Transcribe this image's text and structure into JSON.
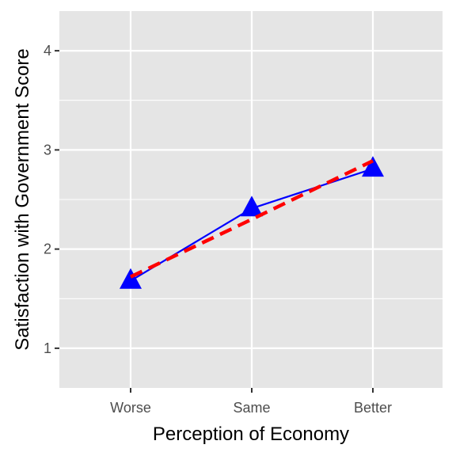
{
  "chart_data": {
    "type": "line",
    "title": "",
    "xlabel": "Perception of Economy",
    "ylabel": "Satisfaction with Government Score",
    "categories": [
      "Worse",
      "Same",
      "Better"
    ],
    "ylim": [
      0.6,
      4.4
    ],
    "yticks": [
      1,
      2,
      3,
      4
    ],
    "grid": true,
    "legend": "none",
    "series": [
      {
        "values": [
          1.68,
          2.41,
          2.81
        ],
        "style": "solid",
        "marker": "triangle",
        "color": "#0000ff"
      },
      {
        "values": [
          1.72,
          2.3,
          2.89
        ],
        "style": "dashed",
        "marker": "none",
        "color": "#ff0000"
      }
    ]
  },
  "colors": {
    "panel": "#e5e5e5",
    "grid": "#ffffff",
    "tick_mark": "#333333"
  }
}
